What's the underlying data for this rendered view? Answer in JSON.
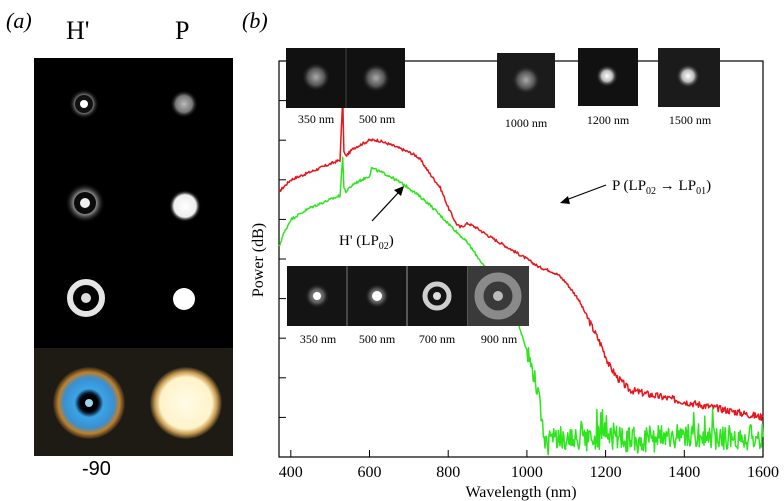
{
  "panel_a": {
    "label": "(a)",
    "columns": [
      "H'",
      "P"
    ],
    "bottom_note": "-90"
  },
  "panel_b": {
    "label": "(b)"
  },
  "chart_data": {
    "type": "line",
    "title": "",
    "xlabel": "Wavelength (nm)",
    "ylabel": "Power (dB)",
    "xlim": [
      370,
      1600
    ],
    "ylim": [
      0,
      100
    ],
    "xticks": [
      400,
      600,
      800,
      1000,
      1200,
      1400,
      1600
    ],
    "y_tick_labels_shown": false,
    "grid": false,
    "series": [
      {
        "name": "P (LP02 → LP01)",
        "color": "#e8161b",
        "x": [
          370,
          400,
          450,
          500,
          525,
          532,
          535,
          540,
          560,
          580,
          600,
          620,
          650,
          700,
          720,
          730,
          750,
          780,
          800,
          820,
          830,
          850,
          870,
          900,
          950,
          1000,
          1030,
          1060,
          1080,
          1100,
          1130,
          1150,
          1170,
          1190,
          1210,
          1230,
          1260,
          1300,
          1350,
          1400,
          1450,
          1500,
          1550,
          1600
        ],
        "y": [
          67,
          70,
          72,
          74,
          75,
          91,
          77,
          76,
          78,
          79,
          80,
          80,
          79,
          77,
          76,
          75,
          72,
          68,
          63,
          59,
          58,
          59,
          58,
          56,
          53,
          50,
          48,
          47,
          46,
          44,
          40,
          36,
          32,
          28,
          23,
          20,
          17,
          16,
          15,
          14,
          13,
          12,
          11,
          10
        ]
      },
      {
        "name": "H' (LP02)",
        "color": "#2ee51d",
        "x": [
          370,
          380,
          400,
          450,
          500,
          525,
          532,
          535,
          540,
          560,
          580,
          600,
          605,
          650,
          700,
          750,
          800,
          850,
          900,
          950,
          980,
          1000,
          1020,
          1030,
          1040,
          1050,
          1060,
          1100,
          1150,
          1200,
          1300,
          1400,
          1500,
          1600
        ],
        "y": [
          53,
          56,
          60,
          63,
          65,
          66,
          76,
          68,
          67,
          69,
          70,
          71,
          73,
          71,
          68,
          64,
          59,
          54,
          47,
          40,
          33,
          27,
          20,
          15,
          8,
          3,
          4,
          5,
          4,
          5,
          4,
          5,
          5,
          5
        ]
      }
    ],
    "annotations": [
      {
        "text": "P (LP02 → LP01)",
        "main": "P (LP",
        "sub1": "02",
        "arrow": " → LP",
        "sub2": "01",
        "close": ")"
      },
      {
        "text": "H' (LP02)",
        "main": "H' (LP",
        "sub1": "02",
        "close": ")"
      }
    ],
    "insets_top": [
      {
        "label": "350 nm"
      },
      {
        "label": "500 nm"
      },
      {
        "label": "1000 nm"
      },
      {
        "label": "1200 nm"
      },
      {
        "label": "1500 nm"
      }
    ],
    "insets_bottom": [
      {
        "label": "350 nm"
      },
      {
        "label": "500 nm"
      },
      {
        "label": "700 nm"
      },
      {
        "label": "900 nm"
      }
    ]
  }
}
